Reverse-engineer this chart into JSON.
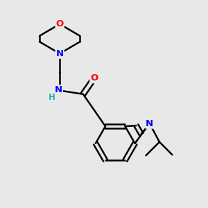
{
  "background_color": "#e8e8e8",
  "bond_color": "#000000",
  "atom_colors": {
    "N": "#0000ff",
    "O": "#ff0000",
    "H": "#20b2aa",
    "C": "#000000"
  },
  "figsize": [
    3.0,
    3.0
  ],
  "dpi": 100
}
